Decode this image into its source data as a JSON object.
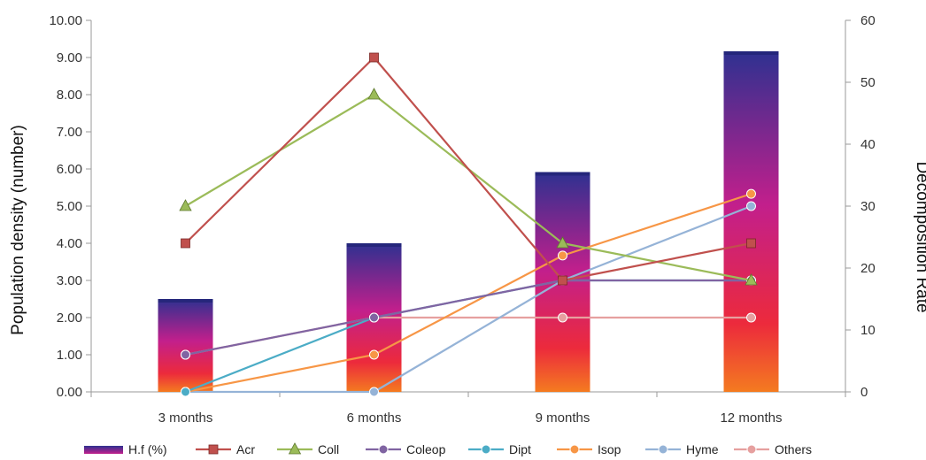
{
  "chart_data": {
    "type": "bar+line",
    "categories": [
      "3 months",
      "6 months",
      "9 months",
      "12 months"
    ],
    "y_left": {
      "label": "Population density (number)",
      "min": 0,
      "max": 10,
      "ticks": [
        "0.00",
        "1.00",
        "2.00",
        "3.00",
        "4.00",
        "5.00",
        "6.00",
        "7.00",
        "8.00",
        "9.00",
        "10.00"
      ]
    },
    "y_right": {
      "label": "Decomposition Rate",
      "min": 0,
      "max": 60,
      "ticks": [
        "0",
        "10",
        "20",
        "30",
        "40",
        "50",
        "60"
      ]
    },
    "bar_series": {
      "name": "H.f (%)",
      "axis": "right",
      "values": [
        15,
        24,
        35.5,
        55
      ],
      "colors": [
        "#2e3190",
        "#c21f8c",
        "#ec2a3c",
        "#f47b20"
      ]
    },
    "line_series": [
      {
        "name": "Acr",
        "color": "#c0504d",
        "marker": "square",
        "values": [
          4,
          9,
          3,
          4
        ]
      },
      {
        "name": "Coll",
        "color": "#9bbb59",
        "marker": "triangle",
        "values": [
          5,
          8,
          4,
          3
        ]
      },
      {
        "name": "Coleop",
        "color": "#8064a2",
        "marker": "circle",
        "values": [
          1,
          2,
          3,
          3
        ]
      },
      {
        "name": "Dipt",
        "color": "#4bacc6",
        "marker": "circle",
        "values": [
          0,
          2,
          3,
          3
        ]
      },
      {
        "name": "Isop",
        "color": "#f79646",
        "marker": "circle",
        "values": [
          0,
          1,
          3.67,
          5.33
        ]
      },
      {
        "name": "Hyme",
        "color": "#95b3d7",
        "marker": "circle",
        "values": [
          0,
          0,
          3,
          5
        ]
      },
      {
        "name": "Others",
        "color": "#e6a09f",
        "marker": "circle",
        "values": [
          1,
          2,
          2,
          2
        ]
      }
    ],
    "gridlines": false,
    "legend_position": "bottom"
  }
}
